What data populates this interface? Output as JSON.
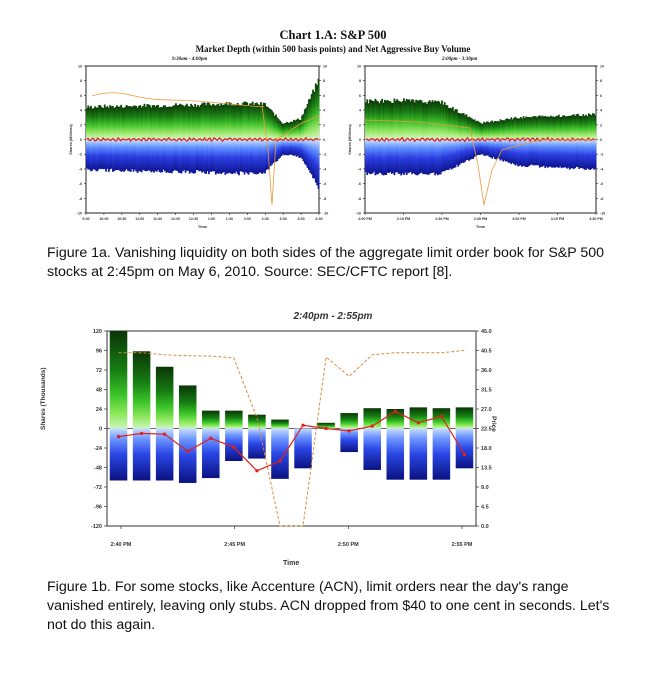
{
  "chart_title": "Chart 1.A: S&P 500",
  "chart_subtitle": "Market Depth (within 500 basis points) and Net Aggressive Buy Volume",
  "left_time_label": "9:30am - 4:00pm",
  "right_time_label": "2:00pm - 3:30pm",
  "caption_1a": "Figure 1a. Vanishing liquidity on both sides of the aggregate limit order book for S&P 500 stocks at 2:45pm on May 6, 2010. Source: SEC/CFTC report [8].",
  "caption_1b": "Figure 1b. For some stocks, like Accenture (ACN), limit orders near the day's range vanished entirely, leaving only stubs.  ACN dropped from $40 to one cent in seconds.  Let's not do this again.",
  "chart_data": [
    {
      "type": "area",
      "title": "Chart 1.A: S&P 500 — 9:30am - 4:00pm",
      "xlabel": "Time",
      "ylabel": "Shares (Millions)",
      "x_ticks": [
        "9:30",
        "10:00",
        "10:30",
        "11:00",
        "11:30",
        "12:00",
        "12:30",
        "1:00",
        "1:30",
        "2:00",
        "2:30",
        "3:00",
        "3:30",
        "4:00"
      ],
      "y_ticks": [
        -10,
        -8,
        -6,
        -4,
        -2,
        0,
        2,
        4,
        6,
        8,
        10
      ],
      "ylim": [
        -10,
        10
      ],
      "bid_depth_millions": [
        -4.1,
        -4.2,
        -4.2,
        -4.3,
        -4.3,
        -4.4,
        -4.4,
        -4.5,
        -4.6,
        -4.6,
        -4.5,
        -2.0,
        -2.4,
        -6.5
      ],
      "ask_depth_millions": [
        4.4,
        4.5,
        4.5,
        4.6,
        4.6,
        4.7,
        4.7,
        4.8,
        4.9,
        4.9,
        4.8,
        2.2,
        2.8,
        8.0
      ]
    },
    {
      "type": "area",
      "title": "Chart 1.A: S&P 500 — 2:00pm - 3:30pm",
      "xlabel": "Time",
      "ylabel": "Shares (Millions)",
      "x_ticks": [
        "2:00 PM",
        "2:15 PM",
        "2:30 PM",
        "2:45 PM",
        "3:00 PM",
        "3:15 PM",
        "3:30 PM"
      ],
      "y_ticks": [
        -10,
        -8,
        -6,
        -4,
        -2,
        0,
        2,
        4,
        6,
        8,
        10
      ],
      "ylim": [
        -10,
        10
      ],
      "bid_depth_millions": [
        -4.6,
        -4.7,
        -4.6,
        -2.0,
        -3.5,
        -3.8,
        -4.0
      ],
      "ask_depth_millions": [
        5.2,
        5.3,
        5.0,
        2.2,
        3.0,
        3.2,
        3.4
      ]
    },
    {
      "type": "bar",
      "title": "2:40pm - 2:55pm",
      "xlabel": "Time",
      "ylabel": "Shares (Thousands)",
      "y2label": "Price",
      "x_ticks": [
        "2:40 PM",
        "2:45 PM",
        "2:50 PM",
        "2:55 PM"
      ],
      "y_ticks": [
        -120,
        -96,
        -72,
        -48,
        -24,
        0,
        24,
        48,
        72,
        96,
        120
      ],
      "y2_ticks": [
        0.0,
        4.5,
        9.0,
        13.5,
        18.0,
        22.5,
        27.0,
        31.5,
        36.0,
        40.5,
        45.0
      ],
      "ylim": [
        -120,
        120
      ],
      "y2lim": [
        0,
        45
      ],
      "ask_depth_thousands": [
        125,
        95,
        76,
        53,
        22,
        22,
        17,
        11,
        0,
        7,
        19,
        25,
        24,
        26,
        25,
        26
      ],
      "bid_depth_thousands": [
        -64,
        -64,
        -64,
        -67,
        -61,
        -40,
        -37,
        -62,
        -49,
        0,
        -29,
        -51,
        -63,
        -63,
        -63,
        -49
      ],
      "net_buy_volume_thousands": [
        -10,
        -6,
        -7,
        -28,
        -12,
        -23,
        -52,
        -40,
        4,
        0,
        -3,
        3,
        21,
        7,
        15,
        -32
      ],
      "price": [
        40,
        40,
        39.5,
        39.3,
        39.2,
        38.8,
        25,
        0.01,
        0.01,
        39,
        34.5,
        39.5,
        40,
        40,
        40,
        40.5
      ]
    }
  ]
}
